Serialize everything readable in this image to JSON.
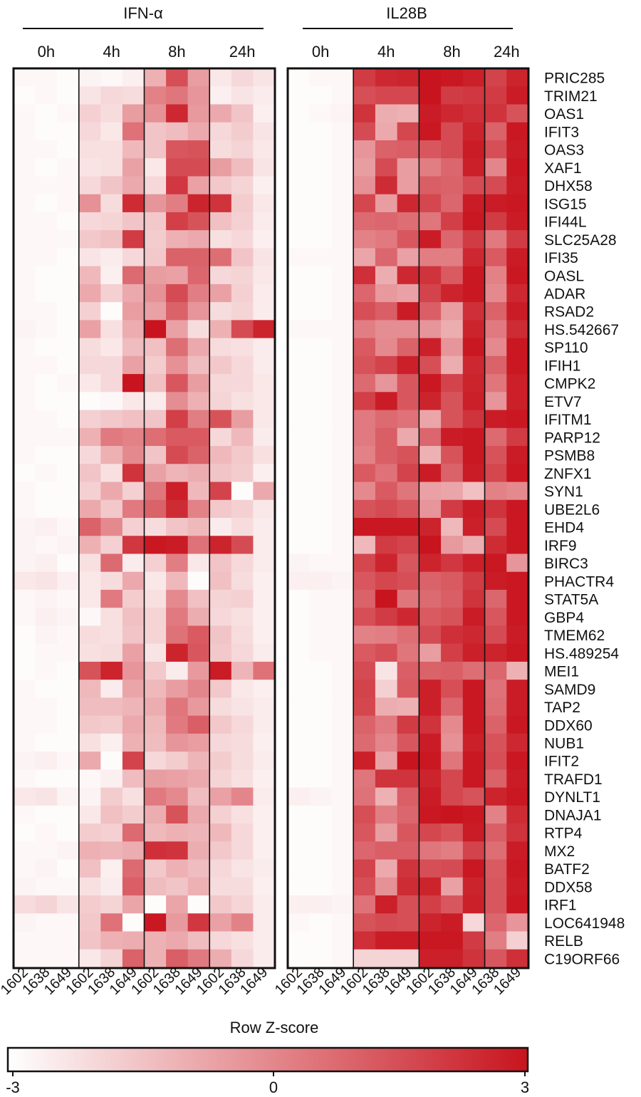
{
  "chart_data": {
    "type": "heatmap",
    "groups": [
      {
        "name": "IFN-α",
        "timepoints": [
          "0h",
          "4h",
          "8h",
          "24h"
        ],
        "column_labels": [
          "1602",
          "1638",
          "1649",
          "1602",
          "1638",
          "1649",
          "1602",
          "1638",
          "1649",
          "1602",
          "1638",
          "1649"
        ]
      },
      {
        "name": "IL28B",
        "timepoints": [
          "0h",
          "4h",
          "8h",
          "24h"
        ],
        "column_labels": [
          "1602",
          "1638",
          "1649",
          "1602",
          "1638",
          "1649",
          "1602",
          "1638",
          "1649",
          "1638",
          "1649"
        ]
      }
    ],
    "rows": [
      "PRIC285",
      "TRIM21",
      "OAS1",
      "IFIT3",
      "OAS3",
      "XAF1",
      "DHX58",
      "ISG15",
      "IFI44L",
      "SLC25A28",
      "IFI35",
      "OASL",
      "ADAR",
      "RSAD2",
      "HS.542667",
      "SP110",
      "IFIH1",
      "CMPK2",
      "ETV7",
      "IFITM1",
      "PARP12",
      "PSMB8",
      "ZNFX1",
      "SYN1",
      "UBE2L6",
      "EHD4",
      "IRF9",
      "BIRC3",
      "PHACTR4",
      "STAT5A",
      "GBP4",
      "TMEM62",
      "HS.489254",
      "MEI1",
      "SAMD9",
      "TAP2",
      "DDX60",
      "NUB1",
      "IFIT2",
      "TRAFD1",
      "DYNLT1",
      "DNAJA1",
      "RTP4",
      "MX2",
      "BATF2",
      "DDX58",
      "IRF1",
      "LOC641948",
      "RELB",
      "C19ORF66"
    ],
    "legend": {
      "title": "Row Z-score",
      "min_label": "-3",
      "mid_label": "0",
      "max_label": "3",
      "range": [
        -3,
        3
      ]
    },
    "colors": {
      "low": "#ffffff",
      "high": "#c8141e"
    },
    "values": [
      [
        -2.8,
        -2.8,
        -2.9,
        -2.7,
        -2.8,
        -2.6,
        -1.0,
        1.5,
        -0.5,
        -2.4,
        -2.0,
        -2.3,
        -2.9,
        -2.8,
        -2.8,
        2.0,
        2.5,
        2.6,
        3.0,
        2.9,
        2.7,
        1.8,
        2.6
      ],
      [
        -2.9,
        -2.8,
        -2.9,
        -2.3,
        -2.0,
        -2.1,
        0.2,
        0.5,
        -0.3,
        -2.6,
        -2.3,
        -2.5,
        -2.9,
        -2.9,
        -2.8,
        1.5,
        1.7,
        1.7,
        3.0,
        2.0,
        2.1,
        2.0,
        2.8
      ],
      [
        -2.8,
        -2.9,
        -2.8,
        -1.8,
        -2.1,
        -0.5,
        -0.2,
        2.5,
        -0.4,
        -0.8,
        -1.5,
        -2.6,
        -2.9,
        -2.8,
        -2.7,
        2.2,
        -0.9,
        -1.0,
        2.8,
        2.5,
        2.3,
        2.2,
        1.4
      ],
      [
        -2.8,
        -2.9,
        -2.9,
        -2.0,
        -2.4,
        0.6,
        -1.5,
        -1.3,
        -0.8,
        -2.0,
        -1.7,
        -2.3,
        -2.9,
        -2.9,
        -2.8,
        1.6,
        -0.8,
        1.7,
        2.9,
        1.6,
        2.6,
        1.0,
        2.9
      ],
      [
        -2.8,
        -2.8,
        -2.9,
        -2.2,
        -2.2,
        -1.2,
        -1.5,
        1.3,
        1.4,
        -2.1,
        -1.9,
        -2.4,
        -2.9,
        -2.9,
        -2.8,
        -0.3,
        1.0,
        1.1,
        1.3,
        1.6,
        2.8,
        1.5,
        2.8
      ],
      [
        -2.8,
        -2.9,
        -2.8,
        -2.3,
        -2.2,
        -0.6,
        -2.4,
        1.6,
        1.6,
        -0.5,
        -1.3,
        -2.3,
        -2.9,
        -2.9,
        -2.8,
        -0.5,
        1.6,
        -0.5,
        0.3,
        0.9,
        2.7,
        0.1,
        2.9
      ],
      [
        -2.8,
        -2.8,
        -2.8,
        -2.0,
        -1.5,
        -0.8,
        -2.0,
        2.1,
        -0.6,
        -1.6,
        -1.9,
        -2.6,
        -2.9,
        -2.9,
        -2.8,
        -0.2,
        2.4,
        -0.5,
        1.1,
        1.0,
        1.6,
        1.6,
        2.8
      ],
      [
        -2.8,
        -2.9,
        -2.8,
        -0.2,
        -2.1,
        2.4,
        -0.3,
        0.3,
        2.6,
        2.2,
        -1.7,
        -2.4,
        -2.9,
        -2.9,
        -2.8,
        1.7,
        -0.5,
        2.5,
        1.7,
        0.9,
        2.8,
        2.8,
        2.9
      ],
      [
        -2.8,
        -2.8,
        -2.9,
        -2.0,
        -1.9,
        -1.5,
        -1.6,
        1.9,
        1.4,
        -1.4,
        -1.8,
        -2.5,
        -2.9,
        -2.9,
        -2.8,
        0.8,
        0.9,
        0.7,
        0.5,
        1.9,
        2.9,
        2.0,
        2.8
      ],
      [
        -2.8,
        -2.8,
        -2.8,
        -1.6,
        -1.4,
        2.0,
        -1.7,
        -1.0,
        -0.8,
        -2.2,
        -2.0,
        -2.6,
        -2.9,
        -2.9,
        -2.8,
        0.2,
        0.4,
        1.3,
        2.8,
        0.9,
        2.0,
        0.4,
        2.0
      ],
      [
        -2.8,
        -2.8,
        -2.9,
        -2.3,
        -2.5,
        -2.0,
        -1.6,
        1.0,
        1.0,
        0.7,
        -1.5,
        -2.3,
        -2.8,
        -2.8,
        -2.8,
        -0.7,
        0.9,
        -0.6,
        0.3,
        0.3,
        2.5,
        1.2,
        2.8
      ],
      [
        -2.8,
        -2.9,
        -2.9,
        -1.2,
        -2.6,
        0.8,
        -0.5,
        -0.6,
        0.9,
        -2.0,
        -1.9,
        -2.4,
        -2.9,
        -2.9,
        -2.8,
        2.3,
        -0.9,
        2.5,
        2.2,
        1.2,
        2.9,
        0.2,
        2.9
      ],
      [
        -2.8,
        -2.9,
        -2.9,
        -0.8,
        -1.8,
        -0.8,
        -0.2,
        1.6,
        0.3,
        -0.6,
        -1.8,
        -2.5,
        -2.9,
        -2.9,
        -2.8,
        0.9,
        -0.4,
        -0.6,
        1.8,
        2.6,
        2.9,
        0.0,
        2.5
      ],
      [
        -2.8,
        -2.8,
        -2.9,
        -1.8,
        -2.9,
        -0.5,
        -0.6,
        1.0,
        -0.3,
        -2.1,
        -1.9,
        -2.5,
        -2.9,
        -2.9,
        -2.8,
        1.5,
        1.1,
        2.8,
        1.1,
        -0.5,
        2.3,
        1.0,
        2.8
      ],
      [
        -2.7,
        -2.8,
        -2.9,
        -0.6,
        -2.2,
        -0.9,
        3.0,
        -0.6,
        -2.1,
        -1.0,
        1.6,
        2.6,
        -2.8,
        -2.8,
        -2.8,
        0.3,
        -0.1,
        -0.1,
        -0.3,
        -0.9,
        2.6,
        0.4,
        2.4
      ],
      [
        -2.8,
        -2.9,
        -2.9,
        -2.1,
        -2.4,
        -1.3,
        -1.4,
        0.7,
        -0.8,
        -2.1,
        -2.2,
        -2.5,
        -2.9,
        -2.9,
        -2.8,
        1.2,
        0.0,
        1.0,
        2.7,
        -0.3,
        2.9,
        0.0,
        2.9
      ],
      [
        -2.8,
        -2.8,
        -2.9,
        -2.0,
        -2.0,
        -0.6,
        -1.7,
        -0.2,
        -1.3,
        -1.6,
        -2.0,
        -2.5,
        -2.9,
        -2.9,
        -2.8,
        1.4,
        1.8,
        2.7,
        1.5,
        -0.9,
        2.5,
        1.0,
        2.9
      ],
      [
        -2.8,
        -2.9,
        -2.8,
        -2.4,
        -2.0,
        3.0,
        -1.4,
        1.3,
        -0.5,
        -2.0,
        -2.0,
        -2.4,
        -2.9,
        -2.9,
        -2.8,
        0.8,
        -0.3,
        1.3,
        2.9,
        1.8,
        2.6,
        0.5,
        2.7
      ],
      [
        -2.8,
        -2.9,
        -2.9,
        -2.9,
        -2.8,
        -2.4,
        -2.5,
        -0.1,
        -1.0,
        -1.9,
        -2.2,
        -2.4,
        -2.9,
        -2.9,
        -2.8,
        1.9,
        2.8,
        1.3,
        2.6,
        1.4,
        2.7,
        -0.3,
        2.7
      ],
      [
        -2.8,
        -2.8,
        -2.9,
        -1.8,
        -1.6,
        -1.4,
        -1.5,
        1.9,
        0.3,
        1.4,
        -0.5,
        -2.4,
        -2.9,
        -2.9,
        -2.8,
        0.4,
        0.8,
        0.6,
        -0.7,
        1.4,
        2.2,
        2.8,
        2.9
      ],
      [
        -2.8,
        -2.8,
        -2.8,
        -1.0,
        0.4,
        0.2,
        0.7,
        1.2,
        1.2,
        -2.0,
        -1.2,
        -2.5,
        -2.9,
        -2.9,
        -2.8,
        0.4,
        1.1,
        -0.8,
        0.9,
        2.8,
        2.9,
        0.8,
        2.0
      ],
      [
        -2.8,
        -2.9,
        -2.9,
        -2.0,
        -1.0,
        0.0,
        -1.5,
        1.6,
        1.0,
        -1.2,
        -1.6,
        -2.2,
        -2.9,
        -2.9,
        -2.8,
        0.2,
        1.1,
        1.4,
        -1.0,
        1.4,
        2.9,
        1.4,
        2.8
      ],
      [
        -2.9,
        -2.8,
        -2.9,
        -1.5,
        -2.2,
        2.2,
        -0.6,
        -1.1,
        -0.9,
        -1.5,
        -1.7,
        -2.6,
        -2.9,
        -2.9,
        -2.8,
        1.2,
        0.6,
        1.8,
        2.8,
        1.0,
        2.8,
        1.7,
        2.9
      ],
      [
        -2.8,
        -2.9,
        -2.9,
        -1.8,
        -0.8,
        -1.8,
        0.5,
        2.7,
        -1.2,
        1.8,
        -2.9,
        -0.8,
        -2.9,
        -2.9,
        -2.8,
        0.0,
        1.2,
        0.5,
        -0.6,
        -0.7,
        -1.4,
        0.2,
        0.0
      ],
      [
        -2.8,
        -2.9,
        -2.9,
        -0.8,
        -1.6,
        0.4,
        1.0,
        2.4,
        0.2,
        -1.6,
        -1.8,
        -2.4,
        -2.9,
        -2.9,
        -2.8,
        1.4,
        1.6,
        1.3,
        -0.3,
        2.0,
        2.8,
        2.2,
        2.9
      ],
      [
        -2.7,
        -2.6,
        -2.8,
        1.0,
        0.0,
        -1.8,
        -2.1,
        -1.5,
        -1.2,
        -2.5,
        -2.1,
        -2.5,
        -2.9,
        -2.9,
        -2.8,
        2.9,
        2.9,
        2.9,
        2.6,
        -1.2,
        2.7,
        1.6,
        2.9
      ],
      [
        -2.7,
        -2.8,
        -2.7,
        -1.0,
        -1.8,
        2.1,
        2.9,
        2.8,
        0.6,
        2.6,
        1.6,
        -2.5,
        -2.9,
        -2.9,
        -2.8,
        -1.2,
        2.0,
        1.8,
        3.0,
        -0.4,
        -0.9,
        2.4,
        2.9
      ],
      [
        -2.7,
        -2.6,
        -2.9,
        -2.2,
        0.8,
        -2.5,
        -1.8,
        0.3,
        -2.4,
        -1.5,
        -2.0,
        -2.5,
        -2.7,
        -2.8,
        -2.8,
        1.7,
        2.6,
        1.3,
        2.6,
        2.1,
        2.7,
        2.9,
        -0.3
      ],
      [
        -2.4,
        -2.3,
        -2.6,
        -2.4,
        -2.1,
        -0.8,
        -2.4,
        -1.2,
        -2.9,
        -1.4,
        -2.1,
        -2.6,
        -2.6,
        -2.6,
        -2.7,
        1.3,
        1.7,
        1.5,
        1.0,
        1.2,
        2.0,
        2.8,
        2.9
      ],
      [
        -2.8,
        -2.7,
        -2.8,
        -2.4,
        0.4,
        -1.7,
        -2.2,
        0.0,
        -1.4,
        -1.9,
        -1.8,
        -2.6,
        -2.9,
        -2.8,
        -2.8,
        1.0,
        3.0,
        0.5,
        0.8,
        1.1,
        2.2,
        0.9,
        2.9
      ],
      [
        -2.8,
        -2.6,
        -2.7,
        -2.8,
        -2.2,
        -1.4,
        -1.9,
        0.4,
        -0.9,
        -2.0,
        -2.2,
        -2.6,
        -2.9,
        -2.8,
        -2.8,
        1.5,
        2.0,
        2.5,
        1.2,
        1.4,
        2.8,
        1.3,
        2.9
      ],
      [
        -2.9,
        -2.7,
        -2.8,
        -2.1,
        -2.2,
        -1.5,
        -1.9,
        0.6,
        1.2,
        -1.5,
        -2.1,
        -2.6,
        -2.9,
        -2.8,
        -2.8,
        0.2,
        0.3,
        0.7,
        1.6,
        2.3,
        2.5,
        1.6,
        2.8
      ],
      [
        -2.9,
        -2.8,
        -2.8,
        -2.2,
        -2.1,
        -0.6,
        -2.3,
        2.6,
        1.3,
        -1.6,
        -2.0,
        -2.5,
        -2.9,
        -2.8,
        -2.8,
        1.2,
        1.5,
        0.5,
        -0.5,
        1.9,
        2.7,
        2.6,
        2.9
      ],
      [
        -2.9,
        -2.8,
        -2.9,
        1.4,
        2.6,
        -0.3,
        -1.6,
        -2.5,
        -0.4,
        2.8,
        -1.1,
        0.6,
        -2.9,
        -2.9,
        -2.8,
        1.6,
        -2.3,
        1.1,
        1.0,
        1.1,
        0.7,
        0.9,
        -1.0
      ],
      [
        -2.8,
        -2.9,
        -2.9,
        -1.2,
        -2.5,
        -0.7,
        -1.2,
        -0.5,
        0.1,
        -1.6,
        -2.4,
        -2.6,
        -2.9,
        -2.9,
        -2.8,
        1.8,
        -1.8,
        1.2,
        2.7,
        1.5,
        2.9,
        0.6,
        2.8
      ],
      [
        -2.8,
        -2.8,
        -2.9,
        -1.3,
        -1.3,
        -1.1,
        -0.9,
        0.5,
        -0.4,
        -2.1,
        -2.3,
        -2.5,
        -2.9,
        -2.9,
        -2.8,
        1.7,
        -0.9,
        -1.0,
        2.7,
        0.9,
        2.9,
        0.7,
        2.8
      ],
      [
        -2.8,
        -2.8,
        -2.9,
        -1.6,
        -1.7,
        -0.8,
        -1.2,
        0.4,
        1.1,
        -1.6,
        -2.0,
        -2.5,
        -2.9,
        -2.9,
        -2.8,
        1.0,
        0.4,
        2.0,
        2.2,
        0.0,
        2.9,
        1.0,
        2.9
      ],
      [
        -2.8,
        -2.9,
        -2.9,
        -2.2,
        -2.6,
        -1.0,
        -1.3,
        -0.3,
        -0.5,
        -2.0,
        -2.1,
        -2.6,
        -2.9,
        -2.9,
        -2.8,
        0.8,
        0.1,
        1.3,
        2.8,
        -0.2,
        2.7,
        1.4,
        2.5
      ],
      [
        -2.7,
        -2.6,
        -2.8,
        -0.8,
        -2.9,
        1.8,
        -2.0,
        -1.7,
        -1.1,
        -1.7,
        -2.1,
        -2.5,
        -2.9,
        -2.9,
        -2.8,
        2.7,
        -0.6,
        3.0,
        2.9,
        0.5,
        2.9,
        1.5,
        2.9
      ],
      [
        -2.8,
        -2.9,
        -2.9,
        -2.8,
        -2.6,
        -1.3,
        -0.5,
        -0.6,
        -0.8,
        -1.9,
        -2.2,
        -2.6,
        -2.9,
        -2.9,
        -2.8,
        0.5,
        2.2,
        2.2,
        2.6,
        1.7,
        2.9,
        1.0,
        2.8
      ],
      [
        -2.4,
        -2.3,
        -2.7,
        -2.7,
        -1.7,
        -2.2,
        0.4,
        0.0,
        -1.3,
        -0.6,
        0.1,
        -2.5,
        -2.6,
        -2.7,
        -2.8,
        0.6,
        -1.0,
        1.1,
        2.8,
        1.7,
        1.4,
        2.6,
        2.9
      ],
      [
        -2.8,
        -2.9,
        -2.9,
        -2.4,
        -1.4,
        -1.7,
        -0.9,
        1.4,
        -0.8,
        -1.8,
        -2.2,
        -2.6,
        -2.9,
        -2.9,
        -2.8,
        1.5,
        0.3,
        0.9,
        2.9,
        3.0,
        2.9,
        0.2,
        2.4
      ],
      [
        -2.9,
        -2.8,
        -2.9,
        -1.7,
        -1.8,
        0.8,
        -1.2,
        -1.0,
        -1.1,
        -1.2,
        -2.0,
        -2.6,
        -2.9,
        -2.9,
        -2.8,
        1.3,
        -0.5,
        1.3,
        1.7,
        1.4,
        2.8,
        1.1,
        2.2
      ],
      [
        -2.8,
        -2.8,
        -2.7,
        -1.0,
        -1.1,
        -0.9,
        2.3,
        2.2,
        -0.9,
        -1.6,
        -2.0,
        -2.6,
        -2.9,
        -2.9,
        -2.8,
        0.9,
        1.1,
        1.1,
        0.5,
        0.3,
        1.8,
        0.7,
        2.8
      ],
      [
        -2.8,
        -2.7,
        -2.9,
        -1.4,
        -2.6,
        0.8,
        -1.6,
        -1.0,
        -1.3,
        -2.0,
        -2.3,
        -2.5,
        -2.9,
        -2.9,
        -2.8,
        1.8,
        -0.8,
        2.2,
        1.5,
        1.6,
        2.9,
        1.2,
        2.9
      ],
      [
        -2.7,
        -2.8,
        -2.8,
        -2.2,
        -2.5,
        1.1,
        -1.3,
        -1.5,
        -1.0,
        -2.1,
        -2.1,
        -2.6,
        -2.9,
        -2.9,
        -2.8,
        1.5,
        -0.2,
        2.4,
        2.6,
        -0.6,
        2.6,
        1.3,
        2.8
      ],
      [
        -2.1,
        -1.9,
        -2.3,
        -1.7,
        -1.9,
        -0.7,
        -2.9,
        -0.7,
        -2.9,
        -1.6,
        -1.9,
        -2.5,
        -2.6,
        -2.6,
        -2.7,
        0.6,
        2.7,
        1.5,
        1.9,
        1.3,
        2.7,
        1.3,
        2.9
      ],
      [
        -2.7,
        -2.8,
        -2.8,
        -1.6,
        0.6,
        -2.9,
        2.9,
        -0.4,
        2.1,
        -0.6,
        0.2,
        -2.5,
        -2.8,
        -2.9,
        -2.8,
        1.4,
        1.6,
        1.5,
        2.6,
        2.8,
        -2.0,
        0.9,
        -0.3
      ],
      [
        -2.8,
        -2.8,
        -2.8,
        -1.5,
        -1.0,
        -0.9,
        -1.0,
        -0.8,
        -1.3,
        -2.0,
        -2.2,
        -2.5,
        -2.9,
        -2.9,
        -2.8,
        2.3,
        2.8,
        2.8,
        2.9,
        2.9,
        2.0,
        0.3,
        -1.8
      ],
      [
        -2.8,
        -2.8,
        -2.8,
        -2.4,
        -1.9,
        1.0,
        -1.0,
        1.1,
        0.4,
        -0.9,
        -2.0,
        -2.5,
        -2.9,
        -2.9,
        -2.8,
        -1.9,
        -1.9,
        -1.9,
        2.7,
        2.7,
        2.2,
        1.3,
        2.3
      ]
    ]
  }
}
